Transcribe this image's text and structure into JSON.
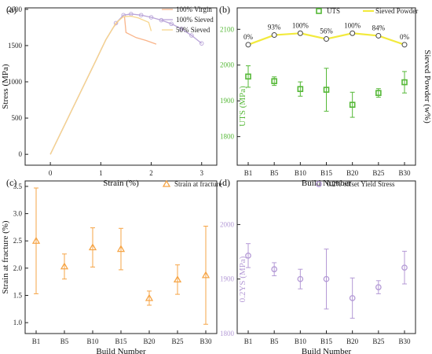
{
  "chart_data": [
    {
      "panel": "(a)",
      "type": "line",
      "xlabel": "Strain (%)",
      "ylabel": "Stress (MPa)",
      "xlim": [
        -0.5,
        3.3
      ],
      "ylim": [
        -150,
        2020
      ],
      "xticks": [
        0,
        1,
        2,
        3
      ],
      "yticks": [
        0,
        500,
        1000,
        1500,
        2000
      ],
      "legend_position": "top-right",
      "series": [
        {
          "name": "100% Virgin",
          "color": "#f9b48a",
          "marker": "none",
          "x": [
            0,
            0.3,
            0.6,
            0.9,
            1.1,
            1.25,
            1.35,
            1.42,
            1.47,
            1.5,
            1.7,
            1.9,
            2.1
          ],
          "y": [
            0,
            430,
            860,
            1290,
            1580,
            1750,
            1840,
            1890,
            1900,
            1680,
            1610,
            1570,
            1520
          ]
        },
        {
          "name": "100% Sieved",
          "color": "#b9a4d8",
          "marker": "circle",
          "x": [
            0,
            0.3,
            0.6,
            0.9,
            1.1,
            1.3,
            1.45,
            1.6,
            1.8,
            2.0,
            2.2,
            2.4,
            2.6,
            2.8,
            3.0
          ],
          "y": [
            0,
            430,
            860,
            1290,
            1580,
            1810,
            1920,
            1935,
            1920,
            1890,
            1850,
            1800,
            1730,
            1640,
            1530
          ]
        },
        {
          "name": "50% Sieved",
          "color": "#f7d58c",
          "marker": "none",
          "x": [
            0,
            0.3,
            0.6,
            0.9,
            1.1,
            1.3,
            1.45,
            1.6,
            1.75,
            1.85,
            1.95,
            2.0
          ],
          "y": [
            0,
            430,
            860,
            1290,
            1580,
            1810,
            1900,
            1905,
            1880,
            1850,
            1820,
            1700
          ]
        }
      ]
    },
    {
      "panel": "(b)",
      "type": "scatter",
      "xlabel": "Build Number",
      "ylabel": "UTS (MPa)",
      "y2label": "Sieved Powder (w%)",
      "categories": [
        "B1",
        "B5",
        "B10",
        "B15",
        "B20",
        "B25",
        "B30"
      ],
      "ylim": [
        1720,
        2160
      ],
      "yticks": [
        1800,
        1900,
        2000,
        2100
      ],
      "legend_position": "top-right",
      "series": [
        {
          "name": "UTS",
          "color": "#55b837",
          "marker": "square",
          "values": [
            1968,
            1955,
            1933,
            1931,
            1889,
            1922,
            1952
          ],
          "errors": [
            30,
            12,
            20,
            60,
            35,
            12,
            30
          ]
        },
        {
          "name": "Sieved Powder",
          "color": "#f2ea3c",
          "marker": "circle",
          "values": [
            2057,
            2084,
            2089,
            2073,
            2089,
            2082,
            2057
          ]
        }
      ],
      "annotations": [
        "0%",
        "93%",
        "100%",
        "56%",
        "100%",
        "84%",
        "0%"
      ]
    },
    {
      "panel": "(c)",
      "type": "scatter",
      "xlabel": "Build Number",
      "ylabel": "Strain at fracture (%)",
      "categories": [
        "B1",
        "B5",
        "B10",
        "B15",
        "B20",
        "B25",
        "B30"
      ],
      "ylim": [
        0.8,
        3.6
      ],
      "yticks": [
        1.0,
        1.5,
        2.0,
        2.5,
        3.0,
        3.5
      ],
      "legend_position": "top-right",
      "series": [
        {
          "name": "Strain at fracture",
          "color": "#f6a547",
          "marker": "triangle",
          "values": [
            2.5,
            2.03,
            2.38,
            2.35,
            1.45,
            1.79,
            1.87
          ],
          "errors": [
            0.97,
            0.23,
            0.36,
            0.38,
            0.13,
            0.27,
            0.9
          ]
        }
      ]
    },
    {
      "panel": "(d)",
      "type": "scatter",
      "xlabel": "Build Number",
      "ylabel": "0.2YS (MPa)",
      "categories": [
        "B1",
        "B5",
        "B10",
        "B15",
        "B20",
        "B25",
        "B30"
      ],
      "ylim": [
        1800,
        2080
      ],
      "yticks": [
        1800,
        1900,
        2000
      ],
      "legend_position": "top-right",
      "series": [
        {
          "name": "0.2% offset Yield Stress",
          "color": "#b49ad6",
          "marker": "circle",
          "values": [
            1943,
            1918,
            1900,
            1900,
            1865,
            1885,
            1921
          ],
          "errors": [
            22,
            12,
            18,
            55,
            37,
            12,
            30
          ]
        }
      ]
    }
  ]
}
